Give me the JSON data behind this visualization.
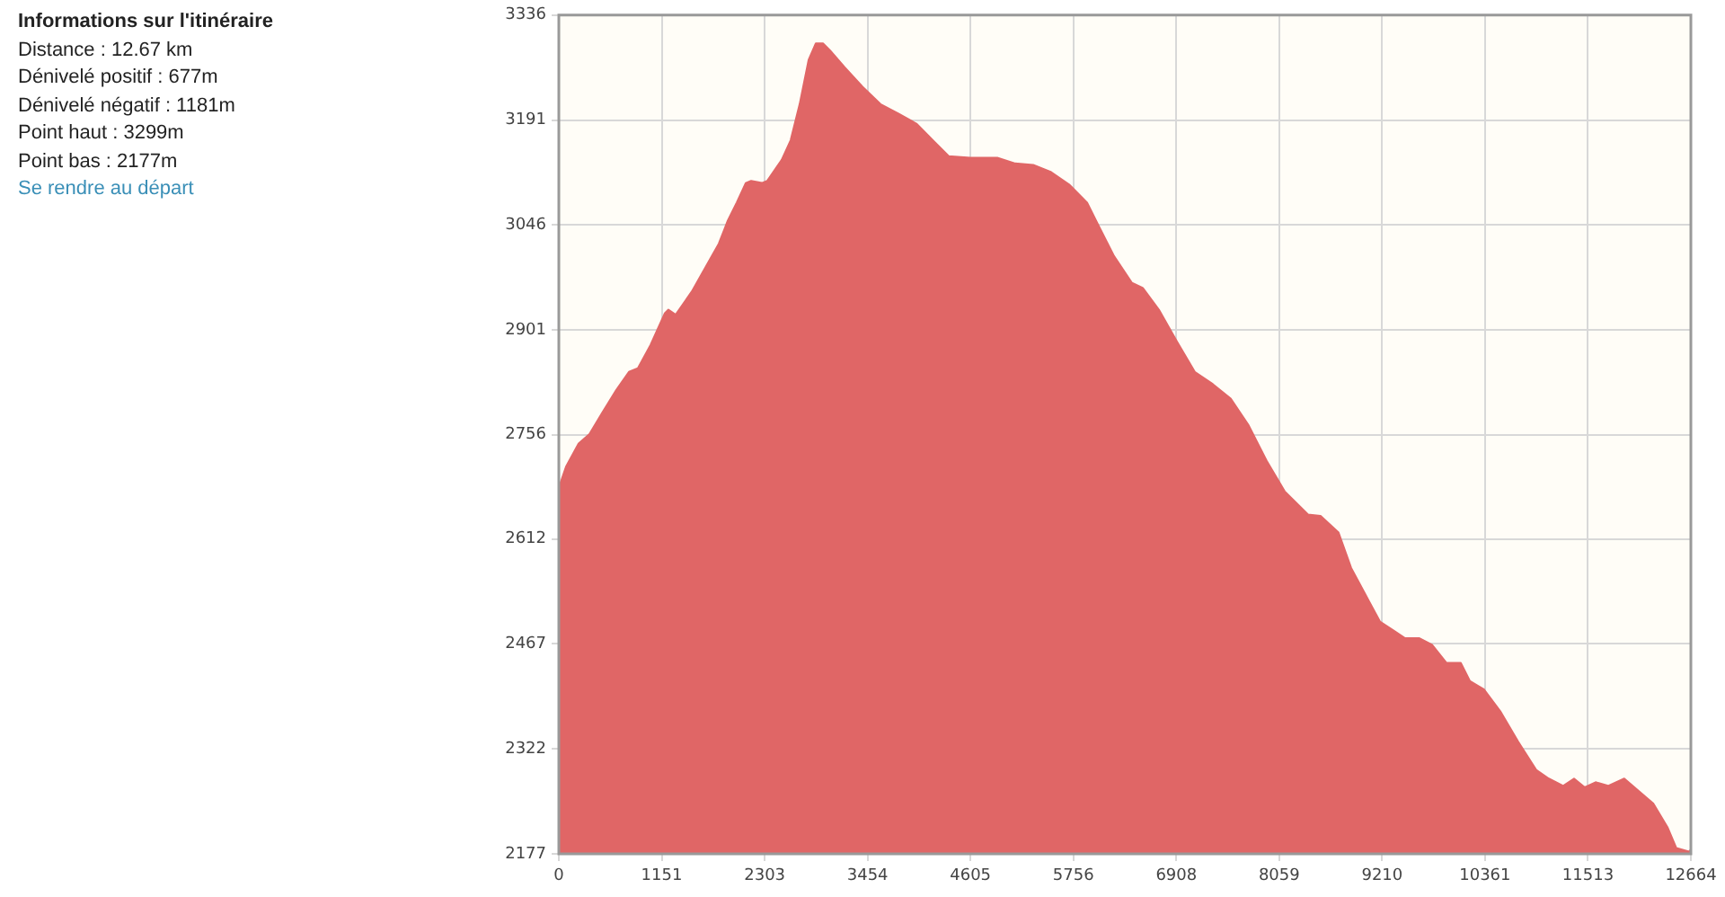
{
  "chart_data": {
    "type": "area",
    "title": "Informations sur l'itinéraire",
    "annotations": [
      "Distance : 12.67 km",
      "Dénivelé positif : 677m",
      "Dénivelé négatif : 1181m",
      "Point haut : 3299m",
      "Point bas : 2177m",
      "Se rendre au départ"
    ],
    "x": [
      0,
      80,
      221,
      342,
      482,
      643,
      784,
      884,
      1025,
      1186,
      1226,
      1307,
      1487,
      1688,
      1789,
      1890,
      1990,
      2091,
      2151,
      2272,
      2332,
      2493,
      2593,
      2694,
      2794,
      2875,
      2955,
      3035,
      3196,
      3397,
      3598,
      3799,
      4000,
      4201,
      4362,
      4603,
      4905,
      5106,
      5307,
      5508,
      5709,
      5910,
      6010,
      6211,
      6412,
      6533,
      6713,
      6915,
      7115,
      7317,
      7517,
      7718,
      7919,
      8120,
      8382,
      8522,
      8723,
      8864,
      9025,
      9186,
      9286,
      9347,
      9467,
      9628,
      9769,
      9929,
      10090,
      10191,
      10352,
      10532,
      10733,
      10934,
      11075,
      11236,
      11357,
      11477,
      11598,
      11738,
      11919,
      12080,
      12241,
      12402,
      12502,
      12643,
      12664
    ],
    "series": [
      {
        "color": "#e06666",
        "values": [
          2683,
          2712,
          2744,
          2757,
          2786,
          2818,
          2843,
          2848,
          2880,
          2924,
          2929,
          2922,
          2954,
          2998,
          3020,
          3052,
          3077,
          3104,
          3107,
          3104,
          3107,
          3136,
          3163,
          3213,
          3274,
          3297,
          3297,
          3287,
          3264,
          3237,
          3213,
          3200,
          3186,
          3161,
          3141,
          3139,
          3139,
          3131,
          3129,
          3119,
          3102,
          3077,
          3052,
          3003,
          2966,
          2959,
          2929,
          2885,
          2843,
          2826,
          2806,
          2769,
          2720,
          2678,
          2646,
          2644,
          2621,
          2572,
          2535,
          2498,
          2490,
          2485,
          2475,
          2475,
          2466,
          2441,
          2441,
          2416,
          2404,
          2374,
          2332,
          2293,
          2281,
          2271,
          2281,
          2269,
          2276,
          2271,
          2281,
          2264,
          2247,
          2214,
          2185,
          2180,
          2183
        ]
      }
    ],
    "xlim": [
      0,
      12664
    ],
    "xticks": [
      0,
      1151,
      2303,
      3454,
      4605,
      5756,
      6908,
      8059,
      9210,
      10361,
      11513,
      12664
    ],
    "ylim": [
      2177,
      3336
    ],
    "yticks": [
      2177,
      2322,
      2467,
      2612,
      2756,
      2901,
      3046,
      3191,
      3336
    ],
    "grid": true
  }
}
